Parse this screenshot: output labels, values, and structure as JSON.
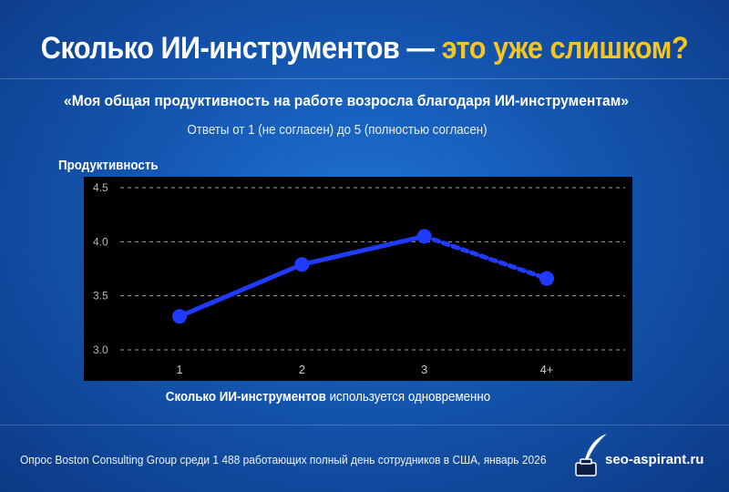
{
  "header": {
    "title_main": "Сколько ИИ-инструментов — ",
    "title_accent": "это уже слишком?",
    "subtitle": "«Моя общая продуктивность на работе возросла благодаря ИИ-инструментам»",
    "note": "Ответы от 1 (не согласен) до 5 (полностью согласен)"
  },
  "chart_data": {
    "type": "line",
    "categories": [
      "1",
      "2",
      "3",
      "4+"
    ],
    "values": [
      3.31,
      3.79,
      4.05,
      3.66
    ],
    "ylabel": "Продуктивность",
    "xlabel_bold": "Сколько ИИ-инструментов",
    "xlabel_rest": " используется одновременно",
    "yticks": [
      "3.0",
      "3.5",
      "4.0",
      "4.5"
    ],
    "ylim": [
      3.0,
      4.5
    ],
    "grid": true,
    "series_color": "#1f3bff",
    "dashed_segment_from_index": 2
  },
  "footer": {
    "source": "Опрос Boston Consulting Group среди 1 488 работающих полный день сотрудников в США, январь 2026",
    "brand": "seo-aspirant.ru",
    "brand_icon": "inkwell-feather-icon"
  },
  "colors": {
    "accent": "#f7c51e",
    "background": "#1456b0",
    "plot_background": "#000000"
  }
}
